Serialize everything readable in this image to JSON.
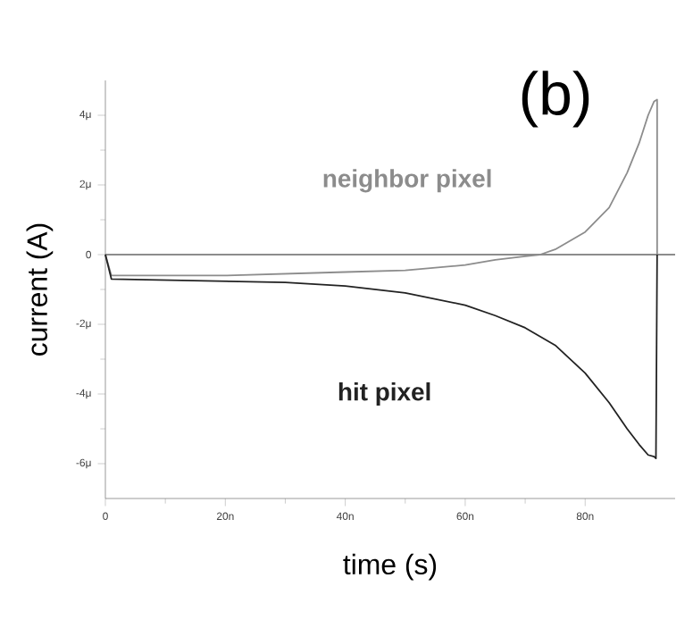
{
  "chart_data": {
    "type": "line",
    "title": "(b)",
    "xlabel": "time (s)",
    "ylabel": "current (A)",
    "xlim": [
      0,
      95
    ],
    "ylim": [
      -7,
      5
    ],
    "xticks": [
      0,
      {
        "value": 20,
        "label": "20n"
      },
      {
        "value": 40,
        "label": "40n"
      },
      {
        "value": 60,
        "label": "60n"
      },
      {
        "value": 80,
        "label": "80n"
      }
    ],
    "yticks": [
      {
        "value": -6,
        "label": "-6μ"
      },
      {
        "value": -4,
        "label": "-4μ"
      },
      {
        "value": -2,
        "label": "-2μ"
      },
      0,
      {
        "value": 2,
        "label": "2μ"
      },
      {
        "value": 4,
        "label": "4μ"
      }
    ],
    "ref_lines": [
      {
        "axis": "y",
        "value": 0,
        "color": "#666666"
      }
    ],
    "grid": false,
    "legend": false,
    "marker": "none",
    "line_style": "solid",
    "series": [
      {
        "name": "neighbor pixel",
        "color": "#8c8c8c",
        "x": [
          0,
          1,
          20,
          40,
          50,
          60,
          65,
          70,
          72.5,
          75,
          80,
          84,
          87,
          89,
          90.5,
          91.5,
          92,
          92
        ],
        "values": [
          0,
          -0.6,
          -0.6,
          -0.5,
          -0.45,
          -0.3,
          -0.15,
          -0.05,
          0,
          0.15,
          0.65,
          1.35,
          2.35,
          3.2,
          4,
          4.4,
          4.45,
          0
        ]
      },
      {
        "name": "hit pixel",
        "color": "#222222",
        "x": [
          0,
          1,
          30,
          40,
          50,
          60,
          65,
          70,
          75,
          80,
          84,
          87,
          89,
          90.5,
          91.5,
          91.8,
          92
        ],
        "values": [
          0,
          -0.7,
          -0.8,
          -0.9,
          -1.1,
          -1.45,
          -1.75,
          -2.1,
          -2.6,
          -3.4,
          -4.25,
          -5,
          -5.45,
          -5.75,
          -5.8,
          -5.85,
          0
        ]
      }
    ]
  }
}
